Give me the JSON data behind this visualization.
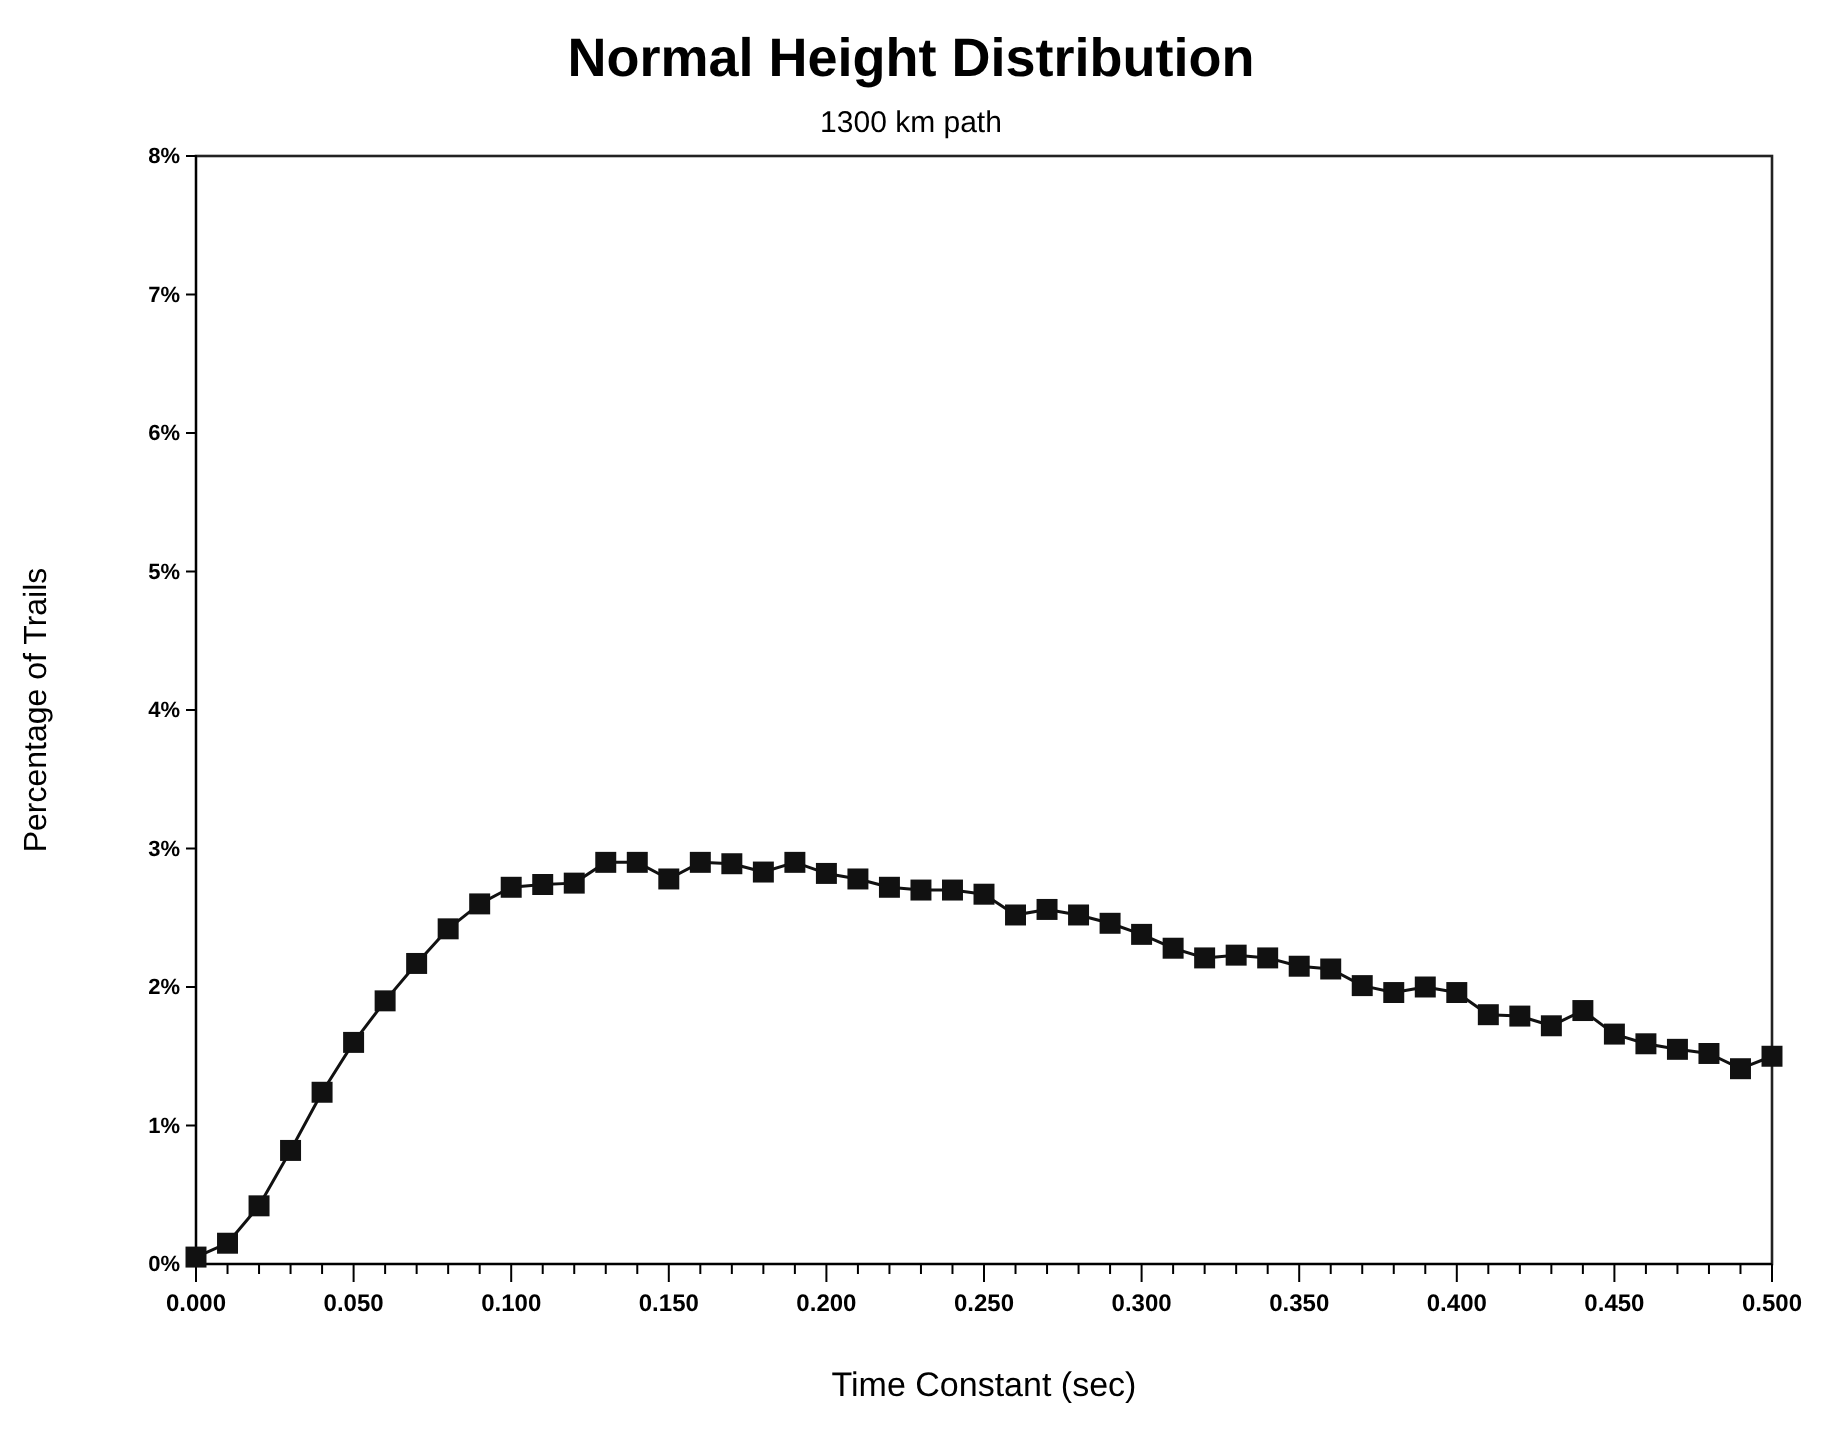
{
  "chart_data": {
    "type": "line",
    "title": "Normal Height Distribution",
    "subtitle": "1300 km path",
    "xlabel": "Time Constant (sec)",
    "ylabel": "Percentage of Trails",
    "x": [
      0,
      0.01,
      0.02,
      0.03,
      0.04,
      0.05,
      0.06,
      0.07,
      0.08,
      0.09,
      0.1,
      0.11,
      0.12,
      0.13,
      0.14,
      0.15,
      0.16,
      0.17,
      0.18,
      0.19,
      0.2,
      0.21,
      0.22,
      0.23,
      0.24,
      0.25,
      0.26,
      0.27,
      0.28,
      0.29,
      0.3,
      0.31,
      0.32,
      0.33,
      0.34,
      0.35,
      0.36,
      0.37,
      0.38,
      0.39,
      0.4,
      0.41,
      0.42,
      0.43,
      0.44,
      0.45,
      0.46,
      0.47,
      0.48,
      0.49,
      0.5
    ],
    "series": [
      {
        "color": "#111111",
        "values": [
          0.05,
          0.15,
          0.42,
          0.82,
          1.24,
          1.6,
          1.9,
          2.17,
          2.42,
          2.6,
          2.72,
          2.74,
          2.75,
          2.9,
          2.9,
          2.78,
          2.9,
          2.89,
          2.83,
          2.9,
          2.82,
          2.78,
          2.72,
          2.7,
          2.7,
          2.67,
          2.52,
          2.56,
          2.52,
          2.46,
          2.38,
          2.28,
          2.21,
          2.23,
          2.21,
          2.15,
          2.13,
          2.01,
          1.96,
          2.0,
          1.96,
          1.8,
          1.79,
          1.72,
          1.83,
          1.66,
          1.59,
          1.55,
          1.52,
          1.41,
          1.5
        ]
      }
    ],
    "xlim": [
      0,
      0.5
    ],
    "xticks": [
      {
        "value": 0,
        "label": "0.000"
      },
      {
        "value": 0.01,
        "label": null
      },
      {
        "value": 0.02,
        "label": null
      },
      {
        "value": 0.03,
        "label": null
      },
      {
        "value": 0.04,
        "label": null
      },
      {
        "value": 0.05,
        "label": "0.050"
      },
      {
        "value": 0.06,
        "label": null
      },
      {
        "value": 0.07,
        "label": null
      },
      {
        "value": 0.08,
        "label": null
      },
      {
        "value": 0.09,
        "label": null
      },
      {
        "value": 0.1,
        "label": "0.100"
      },
      {
        "value": 0.11,
        "label": null
      },
      {
        "value": 0.12,
        "label": null
      },
      {
        "value": 0.13,
        "label": null
      },
      {
        "value": 0.14,
        "label": null
      },
      {
        "value": 0.15,
        "label": "0.150"
      },
      {
        "value": 0.16,
        "label": null
      },
      {
        "value": 0.17,
        "label": null
      },
      {
        "value": 0.18,
        "label": null
      },
      {
        "value": 0.19,
        "label": null
      },
      {
        "value": 0.2,
        "label": "0.200"
      },
      {
        "value": 0.21,
        "label": null
      },
      {
        "value": 0.22,
        "label": null
      },
      {
        "value": 0.23,
        "label": null
      },
      {
        "value": 0.24,
        "label": null
      },
      {
        "value": 0.25,
        "label": "0.250"
      },
      {
        "value": 0.26,
        "label": null
      },
      {
        "value": 0.27,
        "label": null
      },
      {
        "value": 0.28,
        "label": null
      },
      {
        "value": 0.29,
        "label": null
      },
      {
        "value": 0.3,
        "label": "0.300"
      },
      {
        "value": 0.31,
        "label": null
      },
      {
        "value": 0.32,
        "label": null
      },
      {
        "value": 0.33,
        "label": null
      },
      {
        "value": 0.34,
        "label": null
      },
      {
        "value": 0.35,
        "label": "0.350"
      },
      {
        "value": 0.36,
        "label": null
      },
      {
        "value": 0.37,
        "label": null
      },
      {
        "value": 0.38,
        "label": null
      },
      {
        "value": 0.39,
        "label": null
      },
      {
        "value": 0.4,
        "label": "0.400"
      },
      {
        "value": 0.41,
        "label": null
      },
      {
        "value": 0.42,
        "label": null
      },
      {
        "value": 0.43,
        "label": null
      },
      {
        "value": 0.44,
        "label": null
      },
      {
        "value": 0.45,
        "label": "0.450"
      },
      {
        "value": 0.46,
        "label": null
      },
      {
        "value": 0.47,
        "label": null
      },
      {
        "value": 0.48,
        "label": null
      },
      {
        "value": 0.49,
        "label": null
      },
      {
        "value": 0.5,
        "label": "0.500"
      }
    ],
    "ylim": [
      0,
      8
    ],
    "yticks": [
      {
        "value": 0,
        "label": "0%"
      },
      {
        "value": 1,
        "label": "1%"
      },
      {
        "value": 2,
        "label": "2%"
      },
      {
        "value": 3,
        "label": "3%"
      },
      {
        "value": 4,
        "label": "4%"
      },
      {
        "value": 5,
        "label": "5%"
      },
      {
        "value": 6,
        "label": "6%"
      },
      {
        "value": 7,
        "label": "7%"
      },
      {
        "value": 8,
        "label": "8%"
      }
    ],
    "grid": false,
    "marker": "square",
    "line_style": "solid"
  }
}
